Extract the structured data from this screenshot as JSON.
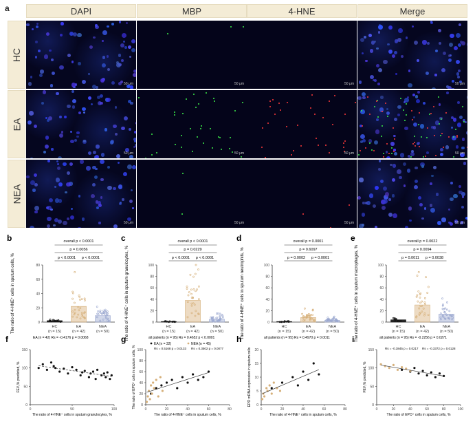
{
  "panel_a": {
    "label": "a",
    "columns": [
      "DAPI",
      "MBP",
      "4-HNE",
      "Merge"
    ],
    "rows": [
      "HC",
      "EA",
      "NEA"
    ],
    "scale_text": "50 μm"
  },
  "panels_bottom": [
    {
      "label": "b",
      "ylabel": "The ratio of 4-HNE⁺ cells in sputum cells, %",
      "groups": [
        "HC\n(n = 15)",
        "EA\n(n = 42)",
        "NEA\n(n = 50)"
      ],
      "overall": "overall p < 0.0001",
      "p_top": "p = 0.0056",
      "p_left": "p < 0.0001",
      "p_right": "p < 0.0001"
    },
    {
      "label": "c",
      "ylabel": "The ratio of 4-HNE⁺ cells in sputum granulocytes, %",
      "groups": [
        "HC\n(n = 15)",
        "EA\n(n = 42)",
        "NEA\n(n = 50)"
      ],
      "overall": "overall p < 0.0001",
      "p_top": "p = 0.0229",
      "p_left": "p < 0.0001",
      "p_right": "p < 0.0001"
    },
    {
      "label": "d",
      "ylabel": "The ratio of 4-HNE⁺ cells in sputum neutrophils, %",
      "groups": [
        "HC\n(n = 15)",
        "EA\n(n = 42)",
        "NEA\n(n = 50)"
      ],
      "overall": "overall p = 0.0001",
      "p_top": "p = 0.6097",
      "p_left": "p = 0.0002",
      "p_right": "p = 0.0001"
    },
    {
      "label": "e",
      "ylabel": "The ratio of 4-HNE⁺ cells in sputum macrophages, %",
      "groups": [
        "HC\n(n = 15)",
        "EA\n(n = 42)",
        "NEA\n(n = 50)"
      ],
      "overall": "overall p = 0.0022",
      "p_top": "p = 0.0094",
      "p_left": "p = 0.0011",
      "p_right": "p = 0.0038"
    }
  ],
  "chart_data": [
    {
      "panel": "b",
      "type": "bar",
      "categories": [
        "HC",
        "EA",
        "NEA"
      ],
      "values": [
        2,
        22,
        9
      ],
      "ylim": [
        0,
        80
      ],
      "yticks": [
        "0",
        "20",
        "40",
        "60",
        "80"
      ],
      "colors": [
        "#111111",
        "#d6b07a",
        "#9aa7cf"
      ]
    },
    {
      "panel": "c",
      "type": "bar",
      "categories": [
        "HC",
        "EA",
        "NEA"
      ],
      "values": [
        1,
        38,
        5
      ],
      "ylim": [
        0,
        100
      ],
      "yticks": [
        "0",
        "20",
        "40",
        "60",
        "80",
        "100"
      ],
      "colors": [
        "#111111",
        "#d6b07a",
        "#9aa7cf"
      ]
    },
    {
      "panel": "d",
      "type": "bar",
      "categories": [
        "HC",
        "EA",
        "NEA"
      ],
      "values": [
        1,
        8,
        3
      ],
      "ylim": [
        0,
        100
      ],
      "yticks": [
        "0",
        "20",
        "40",
        "60",
        "80",
        "100"
      ],
      "colors": [
        "#111111",
        "#d6b07a",
        "#9aa7cf"
      ]
    },
    {
      "panel": "e",
      "type": "bar",
      "categories": [
        "HC",
        "EA",
        "NEA"
      ],
      "values": [
        4,
        30,
        14
      ],
      "ylim": [
        0,
        100
      ],
      "yticks": [
        "0",
        "20",
        "40",
        "60",
        "80",
        "100"
      ],
      "colors": [
        "#111111",
        "#d6b07a",
        "#9aa7cf"
      ]
    },
    {
      "panel": "f",
      "type": "scatter",
      "title": "EA (n = 42) Rs = -0.4176 p = 0.0068",
      "xlabel": "The ratio of 4-HNE⁺ cells in sputum granulocytes, %",
      "ylabel": "FEV₁% predicted, %",
      "xlim": [
        0,
        100
      ],
      "ylim": [
        0,
        150
      ],
      "xticks": [
        "0",
        "50",
        "100"
      ],
      "yticks": [
        "0",
        "50",
        "100",
        "150"
      ],
      "series": [
        {
          "color": "#111111",
          "x": [
            10,
            15,
            20,
            25,
            28,
            30,
            35,
            40,
            45,
            50,
            55,
            60,
            62,
            65,
            70,
            72,
            75,
            78,
            80,
            85,
            88,
            90,
            92,
            95,
            97
          ],
          "y": [
            100,
            110,
            95,
            115,
            105,
            100,
            90,
            98,
            85,
            102,
            95,
            80,
            88,
            92,
            75,
            85,
            90,
            70,
            95,
            80,
            85,
            75,
            88,
            70,
            80
          ]
        }
      ]
    },
    {
      "panel": "g",
      "type": "scatter",
      "title": "all patients (n = 95) Rs = 0.4652 p < 0.0001",
      "legend": [
        "EA (n = 32)",
        "NEA (n = 45)"
      ],
      "stats_left": "Rs = 0.5168  p = 0.0133",
      "stats_right": "Rs = 0.3502  p = 0.0077",
      "xlabel": "The ratio of 4-HNE⁺ cells in sputum cells, %",
      "ylabel": "The ratio of EPO⁺ cells in sputum cells, %",
      "xlim": [
        0,
        80
      ],
      "ylim": [
        0,
        100
      ],
      "xticks": [
        "0",
        "20",
        "40",
        "60",
        "80"
      ],
      "yticks": [
        "0",
        "20",
        "40",
        "60",
        "80",
        "100"
      ],
      "series": [
        {
          "name": "EA",
          "color": "#111111",
          "x": [
            5,
            10,
            15,
            20,
            25,
            30,
            35,
            40,
            45,
            50,
            55,
            60
          ],
          "y": [
            20,
            30,
            35,
            40,
            45,
            30,
            50,
            40,
            55,
            45,
            50,
            60
          ]
        },
        {
          "name": "NEA",
          "color": "#d6b07a",
          "x": [
            1,
            2,
            3,
            4,
            5,
            6,
            7,
            8,
            10,
            12,
            14,
            16
          ],
          "y": [
            5,
            15,
            25,
            10,
            35,
            20,
            40,
            30,
            45,
            15,
            50,
            25
          ]
        }
      ]
    },
    {
      "panel": "h",
      "type": "scatter",
      "title": "all patients (n = 95) Rs = 0.4970 p = 0.0011",
      "xlabel": "The ratio of 4-HNE⁺ cells in sputum cells, %",
      "ylabel": "EPO mRNA expression in sputum cells",
      "xlim": [
        0,
        80
      ],
      "ylim": [
        0,
        20
      ],
      "xticks": [
        "0",
        "20",
        "40",
        "60",
        "80"
      ],
      "yticks": [
        "0",
        "5",
        "10",
        "15",
        "20"
      ],
      "series": [
        {
          "name": "EA",
          "color": "#111111",
          "x": [
            10,
            20,
            30,
            35,
            40,
            45,
            50,
            55
          ],
          "y": [
            6,
            8,
            10,
            7,
            12,
            9,
            15,
            11
          ]
        },
        {
          "name": "NEA",
          "color": "#d6b07a",
          "x": [
            1,
            2,
            3,
            5,
            6,
            8,
            10,
            12,
            15,
            18
          ],
          "y": [
            2,
            4,
            3,
            6,
            5,
            7,
            4,
            8,
            6,
            5
          ]
        }
      ]
    },
    {
      "panel": "i",
      "type": "scatter",
      "title": "all patients (n = 95) Rs = -0.2256 p = 0.0271",
      "stats_left": "Rs = -0.3845  p = 0.0217",
      "stats_right": "Rs = -0.3372  p = 0.0128",
      "xlabel": "The ratio of EPO⁺ cells in sputum cells, %",
      "ylabel": "FEV₁% predicted, %",
      "xlim": [
        0,
        100
      ],
      "ylim": [
        0,
        150
      ],
      "xticks": [
        "0",
        "20",
        "40",
        "60",
        "80",
        "100"
      ],
      "yticks": [
        "0",
        "50",
        "100",
        "150"
      ],
      "series": [
        {
          "name": "EA",
          "color": "#111111",
          "x": [
            30,
            40,
            45,
            50,
            55,
            60,
            65,
            70,
            75,
            80
          ],
          "y": [
            95,
            90,
            100,
            85,
            92,
            80,
            88,
            75,
            85,
            78
          ]
        },
        {
          "name": "NEA",
          "color": "#d6b07a",
          "x": [
            5,
            10,
            15,
            20,
            25,
            30,
            35,
            40
          ],
          "y": [
            110,
            105,
            100,
            108,
            95,
            102,
            98,
            92
          ]
        }
      ]
    }
  ]
}
